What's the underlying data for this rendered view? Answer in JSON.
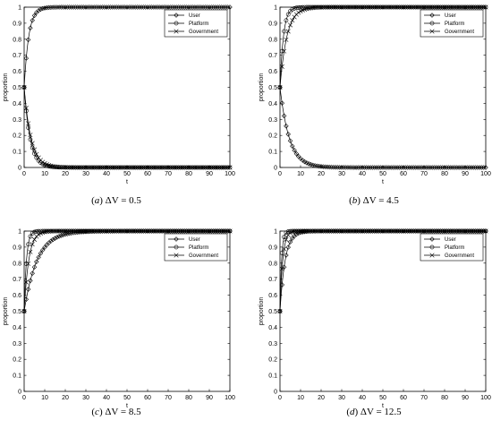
{
  "chart_data": [
    {
      "type": "line",
      "caption_prefix": "(",
      "caption_letter": "a",
      "caption_rest": ")  ΔV = 0.5",
      "xlabel": "t",
      "ylabel": "proportion",
      "xlim": [
        0,
        100
      ],
      "ylim": [
        0,
        1
      ],
      "xticks": [
        "0",
        "10",
        "20",
        "30",
        "40",
        "50",
        "60",
        "70",
        "80",
        "90",
        "100"
      ],
      "yticks": [
        "0",
        "0.1",
        "0.2",
        "0.3",
        "0.4",
        "0.5",
        "0.6",
        "0.7",
        "0.8",
        "0.9",
        "1"
      ],
      "legend_position": "top-right",
      "series": [
        {
          "name": "User",
          "marker": "diamond",
          "start": 0.5,
          "end": 1.0,
          "rate": 0.45
        },
        {
          "name": "Platform",
          "marker": "circle",
          "start": 0.5,
          "end": 0.0,
          "rate": 0.35
        },
        {
          "name": "Government",
          "marker": "x",
          "start": 0.5,
          "end": 0.0,
          "rate": 0.3
        }
      ]
    },
    {
      "type": "line",
      "caption_prefix": "(",
      "caption_letter": "b",
      "caption_rest": ")  ΔV = 4.5",
      "xlabel": "t",
      "ylabel": "proportion",
      "xlim": [
        0,
        100
      ],
      "ylim": [
        0,
        1
      ],
      "xticks": [
        "0",
        "10",
        "20",
        "30",
        "40",
        "50",
        "60",
        "70",
        "80",
        "90",
        "100"
      ],
      "yticks": [
        "0",
        "0.1",
        "0.2",
        "0.3",
        "0.4",
        "0.5",
        "0.6",
        "0.7",
        "0.8",
        "0.9",
        "1"
      ],
      "legend_position": "top-right",
      "series": [
        {
          "name": "User",
          "marker": "diamond",
          "start": 0.5,
          "end": 0.0,
          "rate": 0.22
        },
        {
          "name": "Platform",
          "marker": "circle",
          "start": 0.5,
          "end": 1.0,
          "rate": 0.6
        },
        {
          "name": "Government",
          "marker": "x",
          "start": 0.5,
          "end": 1.0,
          "rate": 0.3
        }
      ]
    },
    {
      "type": "line",
      "caption_prefix": "(",
      "caption_letter": "c",
      "caption_rest": ")  ΔV = 8.5",
      "xlabel": "t",
      "ylabel": "proportion",
      "xlim": [
        0,
        100
      ],
      "ylim": [
        0,
        1
      ],
      "xticks": [
        "0",
        "10",
        "20",
        "30",
        "40",
        "50",
        "60",
        "70",
        "80",
        "90",
        "100"
      ],
      "yticks": [
        "0",
        "0.1",
        "0.2",
        "0.3",
        "0.4",
        "0.5",
        "0.6",
        "0.7",
        "0.8",
        "0.9",
        "1"
      ],
      "legend_position": "top-right",
      "series": [
        {
          "name": "User",
          "marker": "diamond",
          "start": 0.5,
          "end": 1.0,
          "rate": 0.16
        },
        {
          "name": "Platform",
          "marker": "circle",
          "start": 0.5,
          "end": 1.0,
          "rate": 0.9
        },
        {
          "name": "Government",
          "marker": "x",
          "start": 0.5,
          "end": 1.0,
          "rate": 0.45
        }
      ]
    },
    {
      "type": "line",
      "caption_prefix": "(",
      "caption_letter": "d",
      "caption_rest": ")  ΔV = 12.5",
      "xlabel": "t",
      "ylabel": "proportion",
      "xlim": [
        0,
        100
      ],
      "ylim": [
        0,
        1
      ],
      "xticks": [
        "0",
        "10",
        "20",
        "30",
        "40",
        "50",
        "60",
        "70",
        "80",
        "90",
        "100"
      ],
      "yticks": [
        "0",
        "0.1",
        "0.2",
        "0.3",
        "0.4",
        "0.5",
        "0.6",
        "0.7",
        "0.8",
        "0.9",
        "1"
      ],
      "legend_position": "top-right",
      "series": [
        {
          "name": "User",
          "marker": "diamond",
          "start": 0.5,
          "end": 1.0,
          "rate": 0.4
        },
        {
          "name": "Platform",
          "marker": "circle",
          "start": 0.5,
          "end": 1.0,
          "rate": 1.3
        },
        {
          "name": "Government",
          "marker": "x",
          "start": 0.5,
          "end": 1.0,
          "rate": 0.75
        }
      ]
    }
  ]
}
